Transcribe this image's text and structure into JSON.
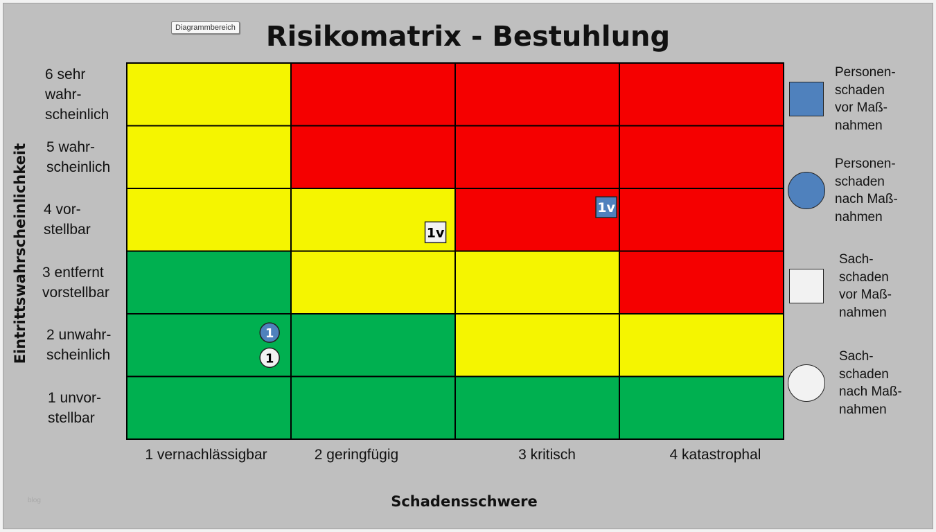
{
  "toolbar": {
    "tooltip": "Diagrammbereich"
  },
  "watermark": "blog",
  "chart_data": {
    "type": "heatmap",
    "title": "Risikomatrix - Bestuhlung",
    "xlabel": "Schadensschwere",
    "ylabel": "Eintrittswahrscheinlichkeit",
    "x_categories": [
      "1 vernachlässigbar",
      "2 geringfügig",
      "3 kritisch",
      "4 katastrophal"
    ],
    "y_categories": [
      "6 sehr wahr-scheinlich",
      "5 wahr-scheinlich",
      "4 vor-stellbar",
      "3 entfernt vorstellbar",
      "2 unwahr-scheinlich",
      "1 unvor-stellbar"
    ],
    "y_label_lines": [
      [
        "6 sehr",
        "wahr-",
        "scheinlich"
      ],
      [
        "5 wahr-",
        "scheinlich"
      ],
      [
        "4 vor-",
        "stellbar"
      ],
      [
        "3 entfernt",
        "vorstellbar"
      ],
      [
        "2 unwahr-",
        "scheinlich"
      ],
      [
        "1 unvor-",
        "stellbar"
      ]
    ],
    "colors": {
      "green": "#00b050",
      "yellow": "#f5f500",
      "red": "#f50000"
    },
    "cells": [
      [
        "yellow",
        "red",
        "red",
        "red"
      ],
      [
        "yellow",
        "red",
        "red",
        "red"
      ],
      [
        "yellow",
        "yellow",
        "red",
        "red"
      ],
      [
        "green",
        "yellow",
        "yellow",
        "red"
      ],
      [
        "green",
        "green",
        "yellow",
        "yellow"
      ],
      [
        "green",
        "green",
        "green",
        "green"
      ]
    ],
    "markers": [
      {
        "label": "1v",
        "series": "Personenschaden vor Maßnahmen",
        "shape": "square",
        "x": 3,
        "y": 4
      },
      {
        "label": "1v",
        "series": "Sachschaden vor Maßnahmen",
        "shape": "square",
        "x": 2,
        "y": 4
      },
      {
        "label": "1",
        "series": "Personenschaden nach Maßnahmen",
        "shape": "circle",
        "x": 1,
        "y": 2
      },
      {
        "label": "1",
        "series": "Sachschaden nach Maßnahmen",
        "shape": "circle",
        "x": 1,
        "y": 2
      }
    ],
    "series": [
      {
        "name": "Personenschaden vor Maßnahmen",
        "lines": [
          "Personen-",
          "schaden",
          "vor Maß-",
          "nahmen"
        ],
        "shape": "square",
        "color": "#4f81bd"
      },
      {
        "name": "Personenschaden nach Maßnahmen",
        "lines": [
          "Personen-",
          "schaden",
          "nach Maß-",
          "nahmen"
        ],
        "shape": "circle",
        "color": "#4f81bd"
      },
      {
        "name": "Sachschaden vor Maßnahmen",
        "lines": [
          "Sach-",
          "schaden",
          "vor Maß-",
          "nahmen"
        ],
        "shape": "square",
        "color": "#f2f2f2"
      },
      {
        "name": "Sachschaden nach Maßnahmen",
        "lines": [
          "Sach-",
          "schaden",
          "nach Maß-",
          "nahmen"
        ],
        "shape": "circle",
        "color": "#f2f2f2"
      }
    ],
    "legend_position": "right"
  }
}
